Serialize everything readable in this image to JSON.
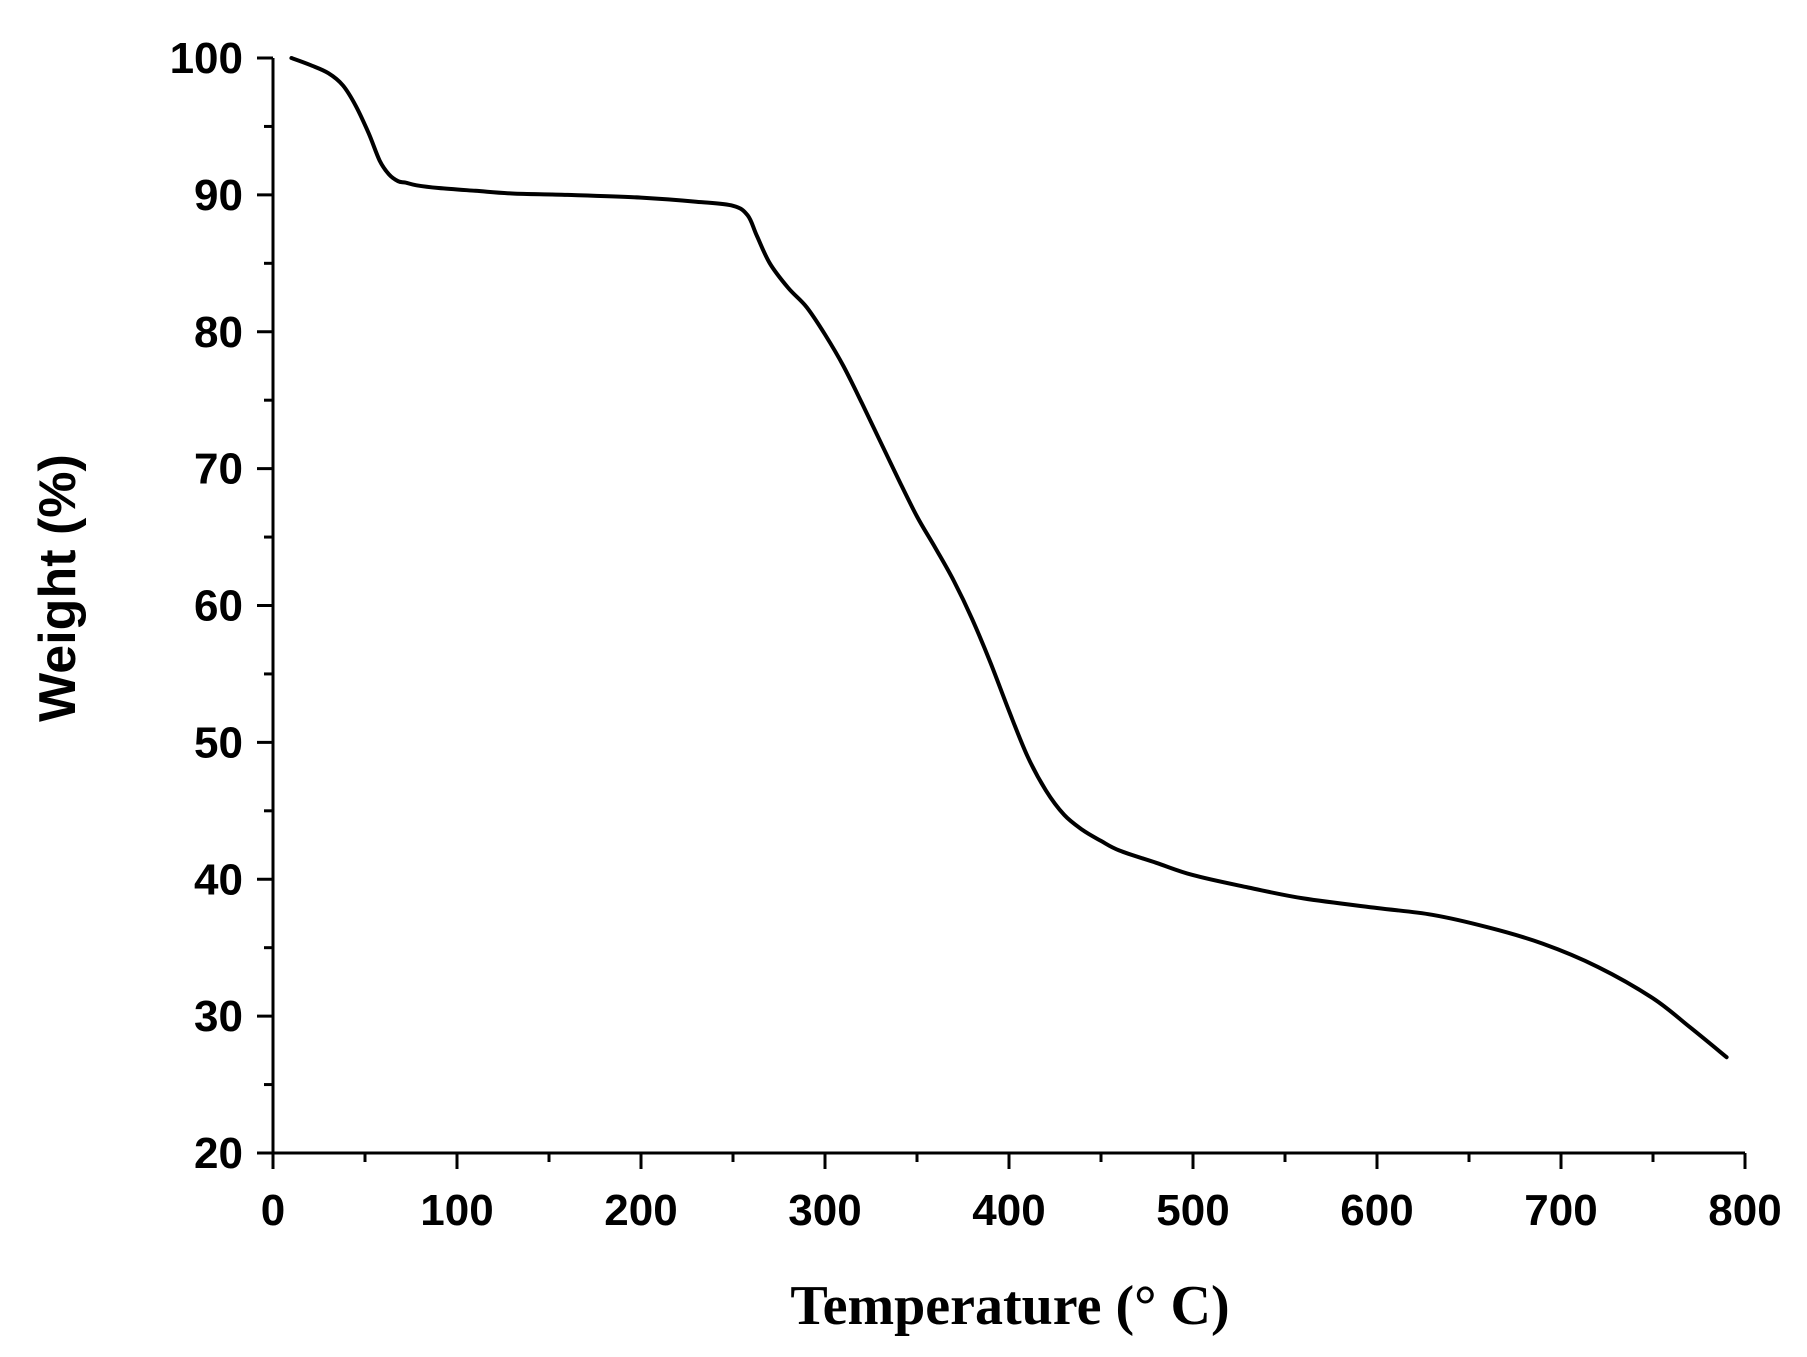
{
  "chart_data": {
    "type": "line",
    "title": "",
    "xlabel": "Temperature (° C)",
    "ylabel": "Weight (%)",
    "xlim": [
      0,
      800
    ],
    "ylim": [
      20,
      100
    ],
    "x_ticks": [
      0,
      100,
      200,
      300,
      400,
      500,
      600,
      700,
      800
    ],
    "y_ticks": [
      20,
      30,
      40,
      50,
      60,
      70,
      80,
      90,
      100
    ],
    "x_minor_step": 50,
    "y_minor_step": 5,
    "grid": false,
    "legend": "none",
    "line_color": "#000000",
    "series": [
      {
        "x": [
          10,
          20,
          30,
          38,
          45,
          52,
          58,
          63,
          68,
          72,
          78,
          90,
          110,
          130,
          160,
          200,
          230,
          250,
          258,
          263,
          270,
          280,
          290,
          300,
          310,
          320,
          330,
          340,
          350,
          360,
          370,
          380,
          390,
          400,
          410,
          420,
          430,
          440,
          450,
          460,
          480,
          500,
          530,
          560,
          600,
          630,
          660,
          690,
          720,
          750,
          770,
          790
        ],
        "y": [
          100,
          99.5,
          98.9,
          98,
          96.5,
          94.5,
          92.5,
          91.5,
          91,
          90.9,
          90.7,
          90.5,
          90.3,
          90.1,
          90,
          89.8,
          89.5,
          89.2,
          88.5,
          87,
          85,
          83.2,
          81.8,
          79.8,
          77.5,
          74.8,
          72,
          69.2,
          66.5,
          64.2,
          61.8,
          59,
          55.8,
          52.3,
          49,
          46.5,
          44.7,
          43.6,
          42.8,
          42.1,
          41.2,
          40.3,
          39.4,
          38.6,
          37.9,
          37.4,
          36.5,
          35.3,
          33.6,
          31.3,
          29.2,
          27
        ]
      }
    ]
  }
}
